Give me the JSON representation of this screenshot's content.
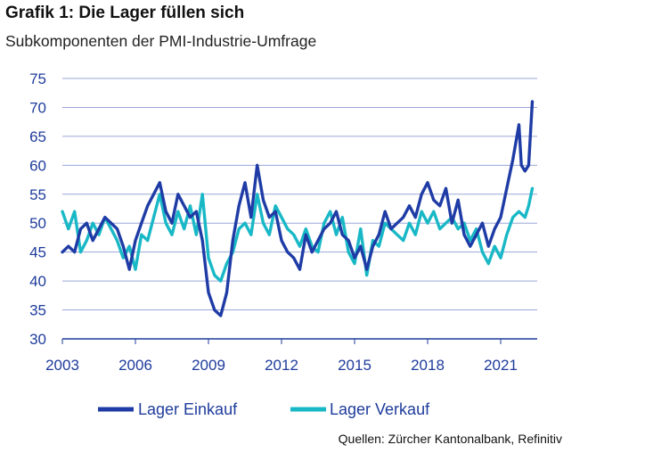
{
  "title": "Grafik 1: Die Lager füllen sich",
  "subtitle": "Subkomponenten der PMI-Industrie-Umfrage",
  "source": "Quellen: Zürcher Kantonalbank, Refinitiv",
  "chart_data": {
    "type": "line",
    "title": "Grafik 1: Die Lager füllen sich",
    "subtitle": "Subkomponenten der PMI-Industrie-Umfrage",
    "xlabel": "",
    "ylabel": "",
    "xlim": [
      2003,
      2022.5
    ],
    "ylim": [
      30,
      75
    ],
    "grid": true,
    "legend_position": "bottom",
    "x_ticks": [
      2003,
      2006,
      2009,
      2012,
      2015,
      2018,
      2021
    ],
    "x_tick_labels": [
      "2003",
      "2006",
      "2009",
      "2012",
      "2015",
      "2018",
      "2021"
    ],
    "y_ticks": [
      30,
      35,
      40,
      45,
      50,
      55,
      60,
      65,
      70,
      75
    ],
    "y_tick_labels": [
      "30",
      "35",
      "40",
      "45",
      "50",
      "55",
      "60",
      "65",
      "70",
      "75"
    ],
    "series": [
      {
        "name": "Lager Einkauf",
        "color": "#1f3ca6",
        "points": [
          [
            2003.0,
            45
          ],
          [
            2003.25,
            46
          ],
          [
            2003.5,
            45
          ],
          [
            2003.75,
            49
          ],
          [
            2004.0,
            50
          ],
          [
            2004.25,
            47
          ],
          [
            2004.5,
            49
          ],
          [
            2004.75,
            51
          ],
          [
            2005.0,
            50
          ],
          [
            2005.25,
            49
          ],
          [
            2005.5,
            46
          ],
          [
            2005.75,
            42
          ],
          [
            2006.0,
            47
          ],
          [
            2006.25,
            50
          ],
          [
            2006.5,
            53
          ],
          [
            2006.75,
            55
          ],
          [
            2007.0,
            57
          ],
          [
            2007.25,
            52
          ],
          [
            2007.5,
            50
          ],
          [
            2007.75,
            55
          ],
          [
            2008.0,
            53
          ],
          [
            2008.25,
            51
          ],
          [
            2008.5,
            52
          ],
          [
            2008.75,
            47
          ],
          [
            2009.0,
            38
          ],
          [
            2009.25,
            35
          ],
          [
            2009.5,
            34
          ],
          [
            2009.75,
            38
          ],
          [
            2010.0,
            47
          ],
          [
            2010.25,
            53
          ],
          [
            2010.5,
            57
          ],
          [
            2010.75,
            51
          ],
          [
            2011.0,
            60
          ],
          [
            2011.25,
            54
          ],
          [
            2011.5,
            51
          ],
          [
            2011.75,
            52
          ],
          [
            2012.0,
            47
          ],
          [
            2012.25,
            45
          ],
          [
            2012.5,
            44
          ],
          [
            2012.75,
            42
          ],
          [
            2013.0,
            48
          ],
          [
            2013.25,
            45
          ],
          [
            2013.5,
            47
          ],
          [
            2013.75,
            49
          ],
          [
            2014.0,
            50
          ],
          [
            2014.25,
            52
          ],
          [
            2014.5,
            48
          ],
          [
            2014.75,
            47
          ],
          [
            2015.0,
            44
          ],
          [
            2015.25,
            46
          ],
          [
            2015.5,
            42
          ],
          [
            2015.75,
            46
          ],
          [
            2016.0,
            48
          ],
          [
            2016.25,
            52
          ],
          [
            2016.5,
            49
          ],
          [
            2016.75,
            50
          ],
          [
            2017.0,
            51
          ],
          [
            2017.25,
            53
          ],
          [
            2017.5,
            51
          ],
          [
            2017.75,
            55
          ],
          [
            2018.0,
            57
          ],
          [
            2018.25,
            54
          ],
          [
            2018.5,
            53
          ],
          [
            2018.75,
            56
          ],
          [
            2019.0,
            50
          ],
          [
            2019.25,
            54
          ],
          [
            2019.5,
            48
          ],
          [
            2019.75,
            46
          ],
          [
            2020.0,
            48
          ],
          [
            2020.25,
            50
          ],
          [
            2020.5,
            46
          ],
          [
            2020.75,
            49
          ],
          [
            2021.0,
            51
          ],
          [
            2021.25,
            56
          ],
          [
            2021.5,
            61
          ],
          [
            2021.75,
            67
          ],
          [
            2021.85,
            60
          ],
          [
            2022.0,
            59
          ],
          [
            2022.15,
            60
          ],
          [
            2022.3,
            71
          ]
        ]
      },
      {
        "name": "Lager Verkauf",
        "color": "#19b8c6",
        "points": [
          [
            2003.0,
            52
          ],
          [
            2003.25,
            49
          ],
          [
            2003.5,
            52
          ],
          [
            2003.75,
            45
          ],
          [
            2004.0,
            47
          ],
          [
            2004.25,
            50
          ],
          [
            2004.5,
            48
          ],
          [
            2004.75,
            51
          ],
          [
            2005.0,
            49
          ],
          [
            2005.25,
            47
          ],
          [
            2005.5,
            44
          ],
          [
            2005.75,
            46
          ],
          [
            2006.0,
            42
          ],
          [
            2006.25,
            48
          ],
          [
            2006.5,
            47
          ],
          [
            2006.75,
            51
          ],
          [
            2007.0,
            55
          ],
          [
            2007.25,
            50
          ],
          [
            2007.5,
            48
          ],
          [
            2007.75,
            52
          ],
          [
            2008.0,
            49
          ],
          [
            2008.25,
            53
          ],
          [
            2008.5,
            48
          ],
          [
            2008.75,
            55
          ],
          [
            2009.0,
            44
          ],
          [
            2009.25,
            41
          ],
          [
            2009.5,
            40
          ],
          [
            2009.75,
            43
          ],
          [
            2010.0,
            45
          ],
          [
            2010.25,
            49
          ],
          [
            2010.5,
            50
          ],
          [
            2010.75,
            48
          ],
          [
            2011.0,
            55
          ],
          [
            2011.25,
            50
          ],
          [
            2011.5,
            48
          ],
          [
            2011.75,
            53
          ],
          [
            2012.0,
            51
          ],
          [
            2012.25,
            49
          ],
          [
            2012.5,
            48
          ],
          [
            2012.75,
            46
          ],
          [
            2013.0,
            49
          ],
          [
            2013.25,
            46
          ],
          [
            2013.5,
            45
          ],
          [
            2013.75,
            50
          ],
          [
            2014.0,
            52
          ],
          [
            2014.25,
            48
          ],
          [
            2014.5,
            51
          ],
          [
            2014.75,
            45
          ],
          [
            2015.0,
            43
          ],
          [
            2015.25,
            49
          ],
          [
            2015.5,
            41
          ],
          [
            2015.75,
            47
          ],
          [
            2016.0,
            46
          ],
          [
            2016.25,
            50
          ],
          [
            2016.5,
            49
          ],
          [
            2016.75,
            48
          ],
          [
            2017.0,
            47
          ],
          [
            2017.25,
            50
          ],
          [
            2017.5,
            48
          ],
          [
            2017.75,
            52
          ],
          [
            2018.0,
            50
          ],
          [
            2018.25,
            52
          ],
          [
            2018.5,
            49
          ],
          [
            2018.75,
            50
          ],
          [
            2019.0,
            51
          ],
          [
            2019.25,
            49
          ],
          [
            2019.5,
            50
          ],
          [
            2019.75,
            47
          ],
          [
            2020.0,
            49
          ],
          [
            2020.25,
            45
          ],
          [
            2020.5,
            43
          ],
          [
            2020.75,
            46
          ],
          [
            2021.0,
            44
          ],
          [
            2021.25,
            48
          ],
          [
            2021.5,
            51
          ],
          [
            2021.75,
            52
          ],
          [
            2022.0,
            51
          ],
          [
            2022.15,
            53
          ],
          [
            2022.3,
            56
          ]
        ]
      }
    ]
  }
}
